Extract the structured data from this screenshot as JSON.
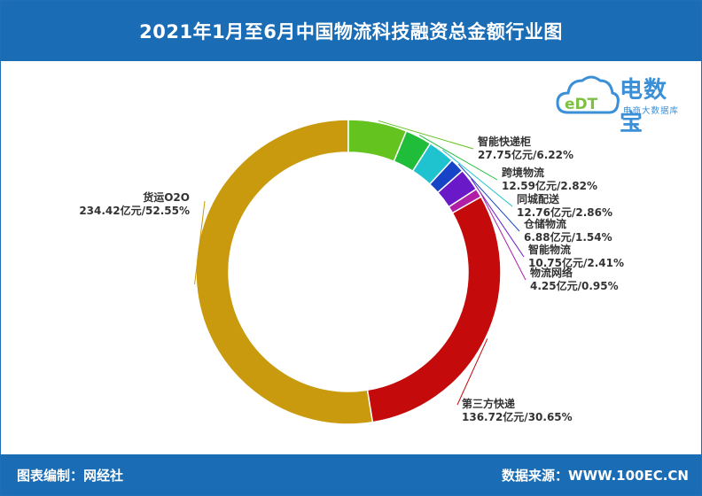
{
  "header": {
    "title": "2021年1月至6月中国物流科技融资总金额行业图"
  },
  "footer": {
    "left": "图表编制：网经社",
    "right": "数据来源：WWW.100EC.CN"
  },
  "logo": {
    "brand": "电数宝",
    "sub": "电商大数据库",
    "mark": "eDT"
  },
  "colors": {
    "header_bg": "#1a6cb5",
    "slices": [
      "#c99a0d",
      "#64c31e",
      "#1fbd3a",
      "#1fc3cf",
      "#1743c6",
      "#6a19c9",
      "#b01ea6",
      "#c40a0a"
    ]
  },
  "chart_data": {
    "type": "pie",
    "style": "donut",
    "unit": "亿元",
    "slices": [
      {
        "name": "货运O2O",
        "value": 234.42,
        "percent": 52.55,
        "value_label": "234.42亿元/52.55%"
      },
      {
        "name": "智能快递柜",
        "value": 27.75,
        "percent": 6.22,
        "value_label": "27.75亿元/6.22%"
      },
      {
        "name": "跨境物流",
        "value": 12.59,
        "percent": 2.82,
        "value_label": "12.59亿元/2.82%"
      },
      {
        "name": "同城配送",
        "value": 12.76,
        "percent": 2.86,
        "value_label": "12.76亿元/2.86%"
      },
      {
        "name": "仓储物流",
        "value": 6.88,
        "percent": 1.54,
        "value_label": "6.88亿元/1.54%"
      },
      {
        "name": "智能物流",
        "value": 10.75,
        "percent": 2.41,
        "value_label": "10.75亿元/2.41%"
      },
      {
        "name": "物流网络",
        "value": 4.25,
        "percent": 0.95,
        "value_label": "4.25亿元/0.95%"
      },
      {
        "name": "第三方快递",
        "value": 136.72,
        "percent": 30.65,
        "value_label": "136.72亿元/30.65%"
      }
    ]
  }
}
